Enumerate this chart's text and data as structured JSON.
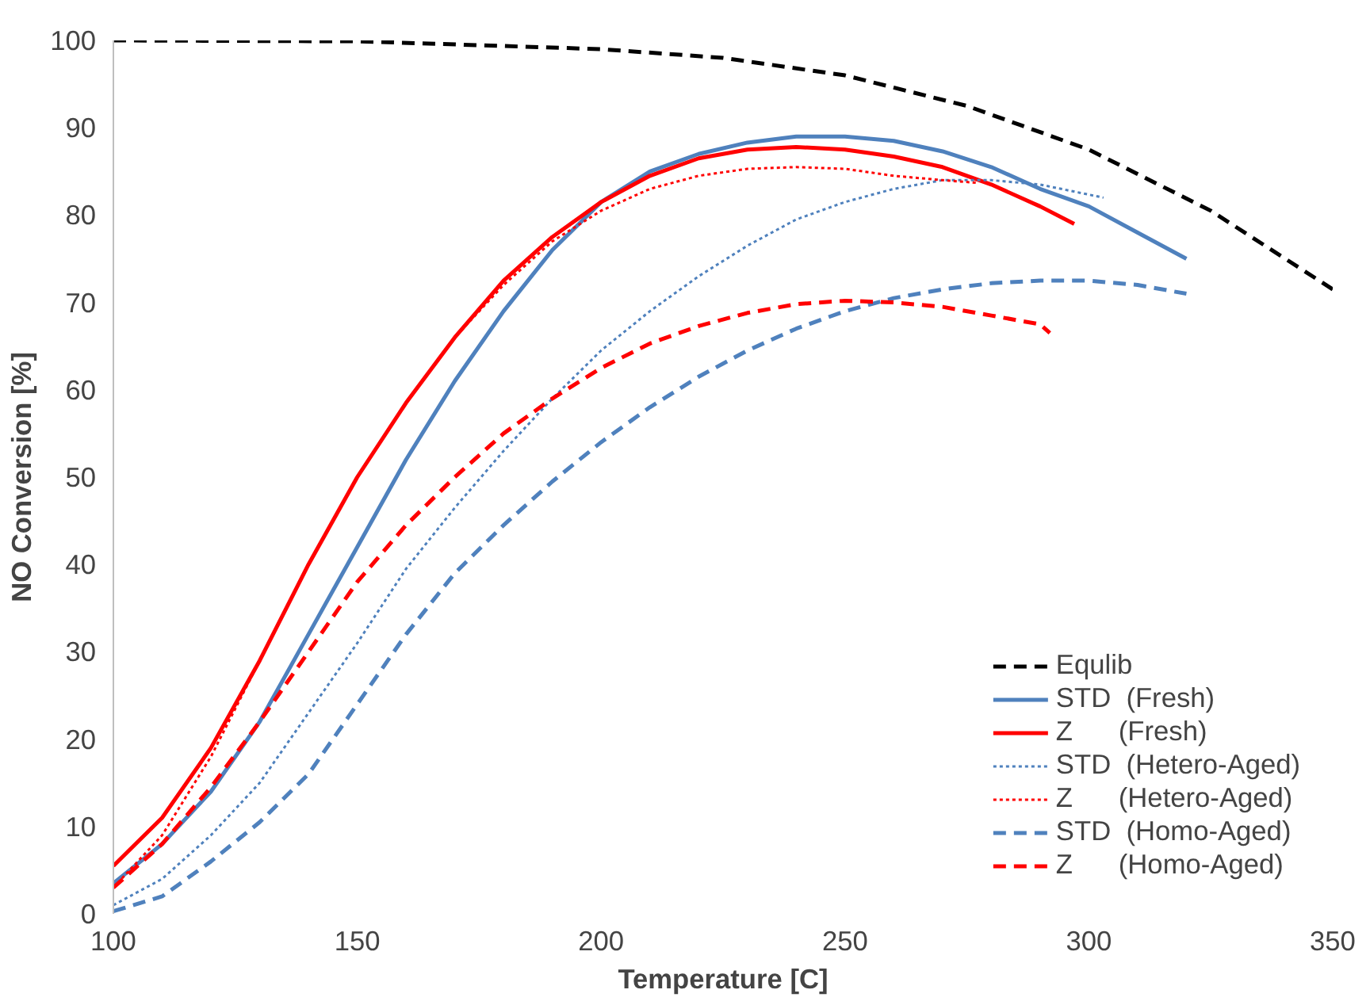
{
  "chart_data": {
    "type": "line",
    "xlabel": "Temperature [C]",
    "ylabel": "NO Conversion [%]",
    "xlim": [
      100,
      350
    ],
    "ylim": [
      0,
      100
    ],
    "xticks": [
      100,
      150,
      200,
      250,
      300,
      350
    ],
    "yticks": [
      0,
      10,
      20,
      30,
      40,
      50,
      60,
      70,
      80,
      90,
      100
    ],
    "grid": false,
    "legend": "bottom right",
    "marker": "none",
    "series": [
      {
        "name": "Equlib",
        "color": "#000000",
        "line_style": "dashed",
        "x": [
          100,
          150,
          200,
          225,
          250,
          275,
          300,
          325,
          350
        ],
        "values": [
          100,
          99.9,
          99,
          98,
          96,
          92.5,
          87.5,
          80.5,
          71.5
        ]
      },
      {
        "name": "STD  (Fresh)",
        "color": "#4f81bd",
        "line_style": "solid",
        "x": [
          100,
          110,
          120,
          130,
          140,
          150,
          160,
          170,
          180,
          190,
          200,
          210,
          220,
          230,
          240,
          250,
          260,
          270,
          280,
          290,
          300,
          310,
          320
        ],
        "values": [
          3.5,
          8,
          14,
          22,
          32,
          42,
          52,
          61,
          69,
          76,
          81.5,
          85,
          87,
          88.3,
          89,
          89,
          88.5,
          87.3,
          85.5,
          83,
          81,
          78,
          75
        ]
      },
      {
        "name": "Z      (Fresh)",
        "color": "#ff0000",
        "line_style": "solid",
        "x": [
          100,
          110,
          120,
          130,
          140,
          150,
          160,
          170,
          180,
          190,
          200,
          210,
          220,
          230,
          240,
          250,
          260,
          270,
          280,
          290,
          297
        ],
        "values": [
          5.5,
          11,
          19,
          29,
          40,
          50,
          58.5,
          66,
          72.5,
          77.5,
          81.5,
          84.5,
          86.5,
          87.5,
          87.8,
          87.5,
          86.7,
          85.5,
          83.5,
          81,
          79
        ]
      },
      {
        "name": "STD  (Hetero-Aged)",
        "color": "#4f81bd",
        "line_style": "dotted",
        "x": [
          100,
          110,
          120,
          130,
          140,
          150,
          160,
          170,
          180,
          190,
          200,
          210,
          220,
          230,
          240,
          250,
          260,
          270,
          280,
          290,
          303
        ],
        "values": [
          1,
          4,
          9,
          15,
          23,
          31,
          39.5,
          46.5,
          53,
          59,
          64.5,
          69,
          73,
          76.5,
          79.5,
          81.5,
          83,
          84,
          84,
          83.5,
          82
        ]
      },
      {
        "name": "Z      (Hetero-Aged)",
        "color": "#ff0000",
        "line_style": "dotted",
        "x": [
          100,
          110,
          120,
          130,
          140,
          150,
          160,
          170,
          180,
          190,
          200,
          210,
          220,
          230,
          240,
          250,
          260,
          270,
          277
        ],
        "values": [
          3,
          9,
          18,
          29,
          40,
          50,
          58.5,
          66,
          72,
          77,
          80.5,
          83,
          84.5,
          85.3,
          85.5,
          85.3,
          84.5,
          84,
          83.7
        ]
      },
      {
        "name": "STD  (Homo-Aged)",
        "color": "#4f81bd",
        "line_style": "dashed",
        "x": [
          100,
          110,
          120,
          130,
          140,
          150,
          160,
          170,
          180,
          190,
          200,
          210,
          220,
          230,
          240,
          250,
          260,
          270,
          280,
          290,
          300,
          310,
          320
        ],
        "values": [
          0.3,
          2,
          6,
          10.5,
          16,
          24,
          32,
          39,
          44.5,
          49.5,
          54,
          58,
          61.5,
          64.5,
          67,
          69,
          70.5,
          71.5,
          72.2,
          72.5,
          72.5,
          72,
          71
        ]
      },
      {
        "name": "Z      (Homo-Aged)",
        "color": "#ff0000",
        "line_style": "dashed",
        "x": [
          100,
          110,
          120,
          130,
          140,
          150,
          160,
          170,
          180,
          190,
          200,
          210,
          220,
          230,
          240,
          250,
          260,
          270,
          280,
          290,
          292
        ],
        "values": [
          3,
          8,
          14.5,
          22,
          30,
          38,
          44.5,
          50,
          55,
          59,
          62.5,
          65.3,
          67.3,
          68.8,
          69.8,
          70.2,
          70,
          69.5,
          68.5,
          67.5,
          66.5
        ]
      }
    ]
  }
}
